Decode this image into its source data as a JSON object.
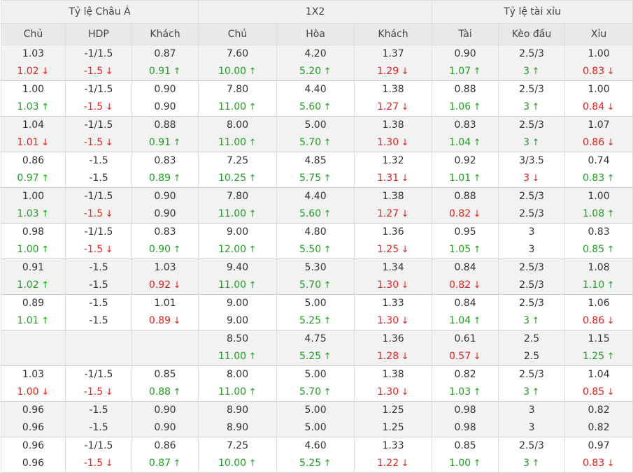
{
  "groups": [
    "Tỷ lệ Châu Á",
    "1X2",
    "Tỷ lệ tài xỉu"
  ],
  "columns": [
    "Chủ",
    "HDP",
    "Khách",
    "Chủ",
    "Hòa",
    "Khách",
    "Tài",
    "Kèo đầu",
    "Xỉu"
  ],
  "colors": {
    "up": "#21a121",
    "down": "#e4231b",
    "alt_row": "#f2f2f2"
  },
  "rows": [
    {
      "cells": [
        [
          {
            "v": "1.03"
          },
          {
            "v": "1.02",
            "d": "down"
          }
        ],
        [
          {
            "v": "-1/1.5"
          },
          {
            "v": "-1.5",
            "d": "down"
          }
        ],
        [
          {
            "v": "0.87"
          },
          {
            "v": "0.91",
            "d": "up"
          }
        ],
        [
          {
            "v": "7.60"
          },
          {
            "v": "10.00",
            "d": "up"
          }
        ],
        [
          {
            "v": "4.20"
          },
          {
            "v": "5.20",
            "d": "up"
          }
        ],
        [
          {
            "v": "1.37"
          },
          {
            "v": "1.29",
            "d": "down"
          }
        ],
        [
          {
            "v": "0.90"
          },
          {
            "v": "1.07",
            "d": "up"
          }
        ],
        [
          {
            "v": "2.5/3"
          },
          {
            "v": "3",
            "d": "up"
          }
        ],
        [
          {
            "v": "1.00"
          },
          {
            "v": "0.83",
            "d": "down"
          }
        ]
      ]
    },
    {
      "cells": [
        [
          {
            "v": "1.00"
          },
          {
            "v": "1.03",
            "d": "up"
          }
        ],
        [
          {
            "v": "-1/1.5"
          },
          {
            "v": "-1.5",
            "d": "down"
          }
        ],
        [
          {
            "v": "0.90"
          },
          {
            "v": "0.90"
          }
        ],
        [
          {
            "v": "7.80"
          },
          {
            "v": "11.00",
            "d": "up"
          }
        ],
        [
          {
            "v": "4.40"
          },
          {
            "v": "5.60",
            "d": "up"
          }
        ],
        [
          {
            "v": "1.38"
          },
          {
            "v": "1.27",
            "d": "down"
          }
        ],
        [
          {
            "v": "0.88"
          },
          {
            "v": "1.06",
            "d": "up"
          }
        ],
        [
          {
            "v": "2.5/3"
          },
          {
            "v": "3",
            "d": "up"
          }
        ],
        [
          {
            "v": "1.00"
          },
          {
            "v": "0.84",
            "d": "down"
          }
        ]
      ]
    },
    {
      "cells": [
        [
          {
            "v": "1.04"
          },
          {
            "v": "1.01",
            "d": "down"
          }
        ],
        [
          {
            "v": "-1/1.5"
          },
          {
            "v": "-1.5",
            "d": "down"
          }
        ],
        [
          {
            "v": "0.88"
          },
          {
            "v": "0.91",
            "d": "up"
          }
        ],
        [
          {
            "v": "8.00"
          },
          {
            "v": "11.00",
            "d": "up"
          }
        ],
        [
          {
            "v": "5.00"
          },
          {
            "v": "5.70",
            "d": "up"
          }
        ],
        [
          {
            "v": "1.38"
          },
          {
            "v": "1.30",
            "d": "down"
          }
        ],
        [
          {
            "v": "0.83"
          },
          {
            "v": "1.04",
            "d": "up"
          }
        ],
        [
          {
            "v": "2.5/3"
          },
          {
            "v": "3",
            "d": "up"
          }
        ],
        [
          {
            "v": "1.07"
          },
          {
            "v": "0.86",
            "d": "down"
          }
        ]
      ]
    },
    {
      "cells": [
        [
          {
            "v": "0.86"
          },
          {
            "v": "0.97",
            "d": "up"
          }
        ],
        [
          {
            "v": "-1.5"
          },
          {
            "v": "-1.5"
          }
        ],
        [
          {
            "v": "0.83"
          },
          {
            "v": "0.89",
            "d": "up"
          }
        ],
        [
          {
            "v": "7.25"
          },
          {
            "v": "10.25",
            "d": "up"
          }
        ],
        [
          {
            "v": "4.85"
          },
          {
            "v": "5.75",
            "d": "up"
          }
        ],
        [
          {
            "v": "1.32"
          },
          {
            "v": "1.31",
            "d": "down"
          }
        ],
        [
          {
            "v": "0.92"
          },
          {
            "v": "1.01",
            "d": "up"
          }
        ],
        [
          {
            "v": "3/3.5"
          },
          {
            "v": "3",
            "d": "down"
          }
        ],
        [
          {
            "v": "0.74"
          },
          {
            "v": "0.83",
            "d": "up"
          }
        ]
      ]
    },
    {
      "cells": [
        [
          {
            "v": "1.00"
          },
          {
            "v": "1.03",
            "d": "up"
          }
        ],
        [
          {
            "v": "-1/1.5"
          },
          {
            "v": "-1.5",
            "d": "down"
          }
        ],
        [
          {
            "v": "0.90"
          },
          {
            "v": "0.90"
          }
        ],
        [
          {
            "v": "7.80"
          },
          {
            "v": "11.00",
            "d": "up"
          }
        ],
        [
          {
            "v": "4.40"
          },
          {
            "v": "5.60",
            "d": "up"
          }
        ],
        [
          {
            "v": "1.38"
          },
          {
            "v": "1.27",
            "d": "down"
          }
        ],
        [
          {
            "v": "0.88"
          },
          {
            "v": "0.82",
            "d": "down"
          }
        ],
        [
          {
            "v": "2.5/3"
          },
          {
            "v": "2.5/3"
          }
        ],
        [
          {
            "v": "1.00"
          },
          {
            "v": "1.08",
            "d": "up"
          }
        ]
      ]
    },
    {
      "cells": [
        [
          {
            "v": "0.98"
          },
          {
            "v": "1.00",
            "d": "up"
          }
        ],
        [
          {
            "v": "-1/1.5"
          },
          {
            "v": "-1.5",
            "d": "down"
          }
        ],
        [
          {
            "v": "0.83"
          },
          {
            "v": "0.90",
            "d": "up"
          }
        ],
        [
          {
            "v": "9.00"
          },
          {
            "v": "12.00",
            "d": "up"
          }
        ],
        [
          {
            "v": "4.80"
          },
          {
            "v": "5.50",
            "d": "up"
          }
        ],
        [
          {
            "v": "1.36"
          },
          {
            "v": "1.25",
            "d": "down"
          }
        ],
        [
          {
            "v": "0.95"
          },
          {
            "v": "1.05",
            "d": "up"
          }
        ],
        [
          {
            "v": "3"
          },
          {
            "v": "3"
          }
        ],
        [
          {
            "v": "0.83"
          },
          {
            "v": "0.85",
            "d": "up"
          }
        ]
      ]
    },
    {
      "cells": [
        [
          {
            "v": "0.91"
          },
          {
            "v": "1.02",
            "d": "up"
          }
        ],
        [
          {
            "v": "-1.5"
          },
          {
            "v": "-1.5"
          }
        ],
        [
          {
            "v": "1.03"
          },
          {
            "v": "0.92",
            "d": "down"
          }
        ],
        [
          {
            "v": "9.40"
          },
          {
            "v": "11.00",
            "d": "up"
          }
        ],
        [
          {
            "v": "5.30"
          },
          {
            "v": "5.70",
            "d": "up"
          }
        ],
        [
          {
            "v": "1.34"
          },
          {
            "v": "1.30",
            "d": "down"
          }
        ],
        [
          {
            "v": "0.84"
          },
          {
            "v": "0.82",
            "d": "down"
          }
        ],
        [
          {
            "v": "2.5/3"
          },
          {
            "v": "2.5/3"
          }
        ],
        [
          {
            "v": "1.08"
          },
          {
            "v": "1.10",
            "d": "up"
          }
        ]
      ]
    },
    {
      "cells": [
        [
          {
            "v": "0.89"
          },
          {
            "v": "1.01",
            "d": "up"
          }
        ],
        [
          {
            "v": "-1.5"
          },
          {
            "v": "-1.5"
          }
        ],
        [
          {
            "v": "1.01"
          },
          {
            "v": "0.89",
            "d": "down"
          }
        ],
        [
          {
            "v": "9.00"
          },
          {
            "v": "9.00"
          }
        ],
        [
          {
            "v": "5.00"
          },
          {
            "v": "5.25",
            "d": "up"
          }
        ],
        [
          {
            "v": "1.33"
          },
          {
            "v": "1.30",
            "d": "down"
          }
        ],
        [
          {
            "v": "0.84"
          },
          {
            "v": "1.04",
            "d": "up"
          }
        ],
        [
          {
            "v": "2.5/3"
          },
          {
            "v": "3",
            "d": "up"
          }
        ],
        [
          {
            "v": "1.06"
          },
          {
            "v": "0.86",
            "d": "down"
          }
        ]
      ]
    },
    {
      "cells": [
        [],
        [],
        [],
        [
          {
            "v": "8.50"
          },
          {
            "v": "11.00",
            "d": "up"
          }
        ],
        [
          {
            "v": "4.75"
          },
          {
            "v": "5.25",
            "d": "up"
          }
        ],
        [
          {
            "v": "1.36"
          },
          {
            "v": "1.28",
            "d": "down"
          }
        ],
        [
          {
            "v": "0.61"
          },
          {
            "v": "0.57",
            "d": "down"
          }
        ],
        [
          {
            "v": "2.5"
          },
          {
            "v": "2.5"
          }
        ],
        [
          {
            "v": "1.15"
          },
          {
            "v": "1.25",
            "d": "up"
          }
        ]
      ]
    },
    {
      "cells": [
        [
          {
            "v": "1.03"
          },
          {
            "v": "1.00",
            "d": "down"
          }
        ],
        [
          {
            "v": "-1/1.5"
          },
          {
            "v": "-1.5",
            "d": "down"
          }
        ],
        [
          {
            "v": "0.85"
          },
          {
            "v": "0.88",
            "d": "up"
          }
        ],
        [
          {
            "v": "8.00"
          },
          {
            "v": "11.00",
            "d": "up"
          }
        ],
        [
          {
            "v": "5.00"
          },
          {
            "v": "5.70",
            "d": "up"
          }
        ],
        [
          {
            "v": "1.38"
          },
          {
            "v": "1.30",
            "d": "down"
          }
        ],
        [
          {
            "v": "0.82"
          },
          {
            "v": "1.03",
            "d": "up"
          }
        ],
        [
          {
            "v": "2.5/3"
          },
          {
            "v": "3",
            "d": "up"
          }
        ],
        [
          {
            "v": "1.04"
          },
          {
            "v": "0.85",
            "d": "down"
          }
        ]
      ]
    },
    {
      "cells": [
        [
          {
            "v": "0.96"
          },
          {
            "v": "0.96"
          }
        ],
        [
          {
            "v": "-1.5"
          },
          {
            "v": "-1.5"
          }
        ],
        [
          {
            "v": "0.90"
          },
          {
            "v": "0.90"
          }
        ],
        [
          {
            "v": "8.90"
          },
          {
            "v": "8.90"
          }
        ],
        [
          {
            "v": "5.00"
          },
          {
            "v": "5.00"
          }
        ],
        [
          {
            "v": "1.25"
          },
          {
            "v": "1.25"
          }
        ],
        [
          {
            "v": "0.98"
          },
          {
            "v": "0.98"
          }
        ],
        [
          {
            "v": "3"
          },
          {
            "v": "3"
          }
        ],
        [
          {
            "v": "0.82"
          },
          {
            "v": "0.82"
          }
        ]
      ]
    },
    {
      "cells": [
        [
          {
            "v": "0.96"
          },
          {
            "v": "0.96"
          }
        ],
        [
          {
            "v": "-1/1.5"
          },
          {
            "v": "-1.5",
            "d": "down"
          }
        ],
        [
          {
            "v": "0.86"
          },
          {
            "v": "0.87",
            "d": "up"
          }
        ],
        [
          {
            "v": "7.25"
          },
          {
            "v": "10.00",
            "d": "up"
          }
        ],
        [
          {
            "v": "4.60"
          },
          {
            "v": "5.25",
            "d": "up"
          }
        ],
        [
          {
            "v": "1.33"
          },
          {
            "v": "1.22",
            "d": "down"
          }
        ],
        [
          {
            "v": "0.85"
          },
          {
            "v": "1.00",
            "d": "up"
          }
        ],
        [
          {
            "v": "2.5/3"
          },
          {
            "v": "3",
            "d": "up"
          }
        ],
        [
          {
            "v": "0.97"
          },
          {
            "v": "0.83",
            "d": "down"
          }
        ]
      ]
    }
  ]
}
